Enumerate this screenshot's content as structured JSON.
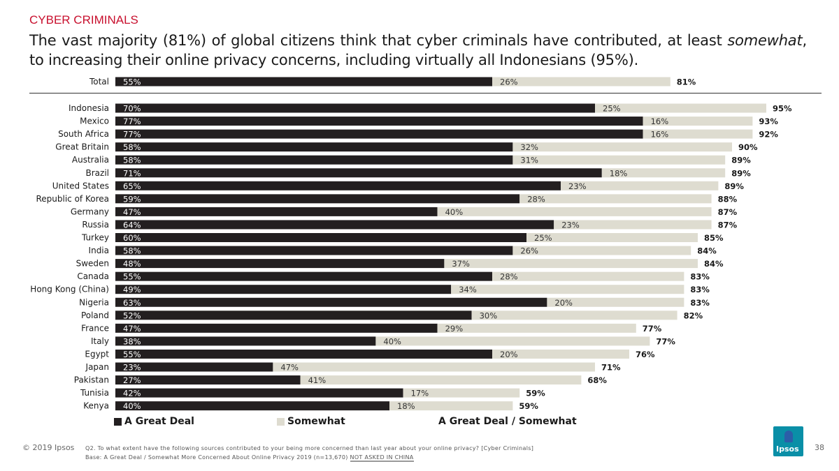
{
  "header": {
    "section_title": "CYBER CRIMINALS",
    "headline_part1": "The vast majority (81%) of global citizens think that cyber criminals have contributed, at least ",
    "headline_emphasis": "somewhat",
    "headline_part2": ", to increasing their online privacy concerns, including virtually all Indonesians (95%)."
  },
  "legend": {
    "great_deal": "A Great Deal",
    "somewhat": "Somewhat",
    "total": "A Great Deal / Somewhat"
  },
  "colors": {
    "great_deal": "#231f20",
    "somewhat": "#dedcd0",
    "title_accent": "#c8102e",
    "logo": "#0a8fa7"
  },
  "chart_data": {
    "type": "bar",
    "orientation": "horizontal",
    "stacked": true,
    "unit": "%",
    "categories": [
      "Total",
      "Indonesia",
      "Mexico",
      "South Africa",
      "Great Britain",
      "Australia",
      "Brazil",
      "United States",
      "Republic of Korea",
      "Germany",
      "Russia",
      "Turkey",
      "India",
      "Sweden",
      "Canada",
      "Hong Kong (China)",
      "Nigeria",
      "Poland",
      "France",
      "Italy",
      "Egypt",
      "Japan",
      "Pakistan",
      "Tunisia",
      "Kenya"
    ],
    "series": [
      {
        "name": "A Great Deal",
        "values": [
          55,
          70,
          77,
          77,
          58,
          58,
          71,
          65,
          59,
          47,
          64,
          60,
          58,
          48,
          55,
          49,
          63,
          52,
          47,
          38,
          55,
          23,
          27,
          42,
          40
        ]
      },
      {
        "name": "Somewhat",
        "values": [
          26,
          25,
          16,
          16,
          32,
          31,
          18,
          23,
          28,
          40,
          23,
          25,
          26,
          37,
          28,
          34,
          20,
          30,
          29,
          40,
          20,
          47,
          41,
          17,
          18
        ]
      }
    ],
    "totals_name": "A Great Deal / Somewhat",
    "totals": [
      81,
      95,
      93,
      92,
      90,
      89,
      89,
      89,
      88,
      87,
      87,
      85,
      84,
      84,
      83,
      83,
      83,
      82,
      77,
      77,
      76,
      71,
      68,
      59,
      59
    ]
  },
  "footer": {
    "copyright": "© 2019 Ipsos",
    "question": "Q2. To what extent have the following sources contributed to your being more concerned than last year about your online privacy? [Cyber Criminals]",
    "base": "Base: A Great Deal / Somewhat More Concerned About Online Privacy 2019 (n=13,670) ",
    "base_note": "NOT ASKED IN CHINA",
    "page_number": "38",
    "logo_text": "Ipsos"
  }
}
